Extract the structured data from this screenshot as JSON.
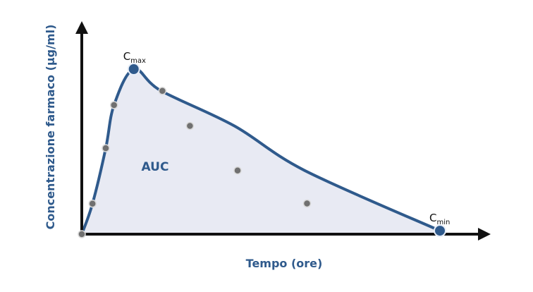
{
  "chart_data": {
    "type": "area",
    "title": "",
    "xlabel": "Tempo (ore)",
    "ylabel": "Concentrazione farmaco (µg/ml)",
    "area_label": "AUC",
    "xlim": [
      0,
      100
    ],
    "ylim": [
      0,
      100
    ],
    "ticks": "none",
    "grid": false,
    "legend": "none",
    "colors": {
      "line": "#2f5a8c",
      "area": "#e8eaf3",
      "axis": "#111111",
      "sample_point": "#707070",
      "sample_point_stroke": "#d9d9d9",
      "key_point": "#2f5a8c",
      "key_point_stroke": "#e8eef8"
    },
    "series": [
      {
        "x": [
          0,
          3,
          6.7,
          9,
          14.5,
          22,
          42.6,
          62.2,
          100
        ],
        "y": [
          0,
          18.5,
          52.1,
          78.2,
          100,
          87,
          65.6,
          38.6,
          2.1
        ]
      }
    ],
    "sample_points": [
      {
        "x": 0,
        "y": 0
      },
      {
        "x": 3,
        "y": 18.5
      },
      {
        "x": 6.7,
        "y": 52.1
      },
      {
        "x": 9,
        "y": 78.2
      },
      {
        "x": 22.5,
        "y": 86.8
      },
      {
        "x": 30.2,
        "y": 65.6
      },
      {
        "x": 43.5,
        "y": 38.6
      },
      {
        "x": 62.9,
        "y": 18.6
      }
    ],
    "key_points": [
      {
        "label": "C",
        "sub": "max",
        "x": 14.5,
        "y": 100
      },
      {
        "label": "C",
        "sub": "min",
        "x": 100,
        "y": 2.1
      }
    ]
  }
}
